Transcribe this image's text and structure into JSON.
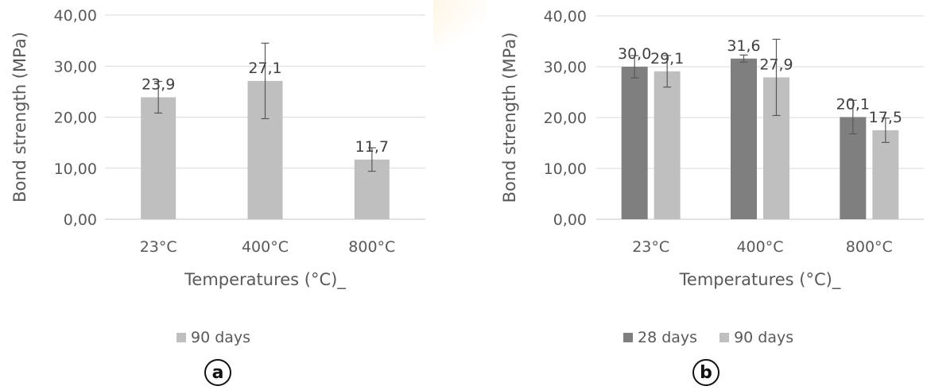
{
  "chart_data": [
    {
      "type": "bar",
      "panel_label": "a",
      "categories": [
        "23°C",
        "400°C",
        "800°C"
      ],
      "series": [
        {
          "name": "90 days",
          "values": [
            23.9,
            27.1,
            11.7
          ],
          "errors": [
            3.1,
            7.4,
            2.3
          ],
          "labels": [
            "23,9",
            "27,1",
            "11,7"
          ],
          "color": "#bfbfbf"
        }
      ],
      "xlabel": "Temperatures (°C)_",
      "ylabel": "Bond strength (MPa)",
      "ylim": [
        0,
        40
      ],
      "yticks": [
        "0,00",
        "10,00",
        "20,00",
        "30,00",
        "40,00"
      ],
      "grid": true,
      "legend": "bottom",
      "colors": {
        "axis": "#d9d9d9",
        "error_bar": "#595959",
        "text": "#595959"
      }
    },
    {
      "type": "bar",
      "panel_label": "b",
      "categories": [
        "23°C",
        "400°C",
        "800°C"
      ],
      "series": [
        {
          "name": "28 days",
          "values": [
            30.0,
            31.6,
            20.1
          ],
          "errors": [
            2.2,
            0.7,
            3.3
          ],
          "labels": [
            "30,0",
            "31,6",
            "20,1"
          ],
          "color": "#7f7f7f"
        },
        {
          "name": "90 days",
          "values": [
            29.1,
            27.9,
            17.5
          ],
          "errors": [
            3.1,
            7.5,
            2.4
          ],
          "labels": [
            "29,1",
            "27,9",
            "17,5"
          ],
          "color": "#bfbfbf"
        }
      ],
      "xlabel": "Temperatures (°C)_",
      "ylabel": "Bond strength (MPa)",
      "ylim": [
        0,
        40
      ],
      "yticks": [
        "0,00",
        "10,00",
        "20,00",
        "30,00",
        "40,00"
      ],
      "grid": true,
      "legend": "bottom",
      "colors": {
        "axis": "#d9d9d9",
        "error_bar": "#595959",
        "text": "#595959"
      }
    }
  ]
}
